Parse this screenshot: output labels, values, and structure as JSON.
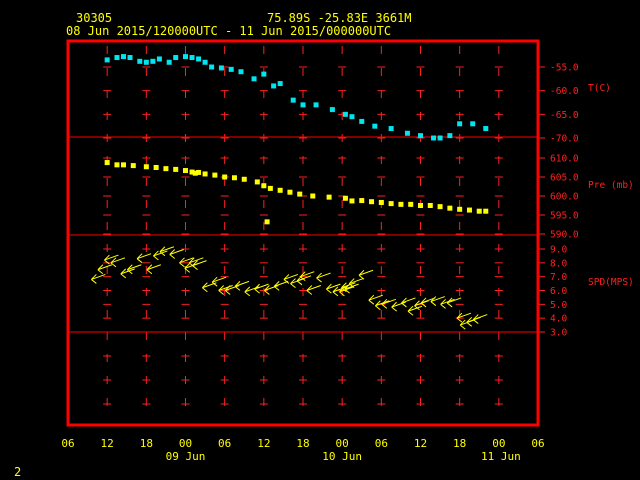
{
  "header": {
    "station": "30305",
    "location": "75.89S   -25.83E   3661M",
    "period": "08 Jun 2015/120000UTC - 11 Jun 2015/000000UTC"
  },
  "footer": {
    "page_number": "2"
  },
  "colors": {
    "frame": "#ff0000",
    "temp": "#00e5ee",
    "pres": "#ffff00",
    "wind": "#ffff00",
    "text": "#ffff00",
    "axis": "#ff2020"
  },
  "chart_data": {
    "type": "scatter",
    "x_ticks": [
      "06",
      "12",
      "18",
      "00",
      "06",
      "12",
      "18",
      "00",
      "06",
      "12",
      "18",
      "00",
      "06"
    ],
    "date_labels": [
      "09 Jun",
      "10 Jun",
      "11 Jun"
    ],
    "panels": [
      {
        "name": "T(C)",
        "yticks": [
          "-55.0",
          "-60.0",
          "-65.0",
          "-70.0"
        ],
        "ylim": [
          -73,
          -50
        ],
        "x": [
          12.0,
          13.5,
          14.5,
          15.5,
          17.0,
          18.0,
          19.0,
          20.0,
          21.5,
          22.5,
          24.0,
          25.0,
          26.0,
          27.0,
          28.0,
          29.5,
          31.0,
          32.5,
          34.5,
          36.0,
          37.5,
          38.5,
          40.5,
          42.0,
          44.0,
          46.5,
          48.5,
          49.5,
          51.0,
          53.0,
          55.5,
          58.0,
          60.0,
          62.0,
          63.0,
          64.5,
          66.0,
          68.0,
          70.0
        ],
        "values": [
          -53.5,
          -53.0,
          -52.8,
          -53.0,
          -53.8,
          -54.0,
          -53.8,
          -53.3,
          -54.0,
          -53.0,
          -52.8,
          -53.0,
          -53.3,
          -54.0,
          -55.0,
          -55.2,
          -55.5,
          -56.0,
          -57.5,
          -56.5,
          -59.0,
          -58.5,
          -62.0,
          -63.0,
          -63.0,
          -64.0,
          -65.0,
          -65.5,
          -66.5,
          -67.5,
          -68.0,
          -69.0,
          -69.5,
          -70.0,
          -70.0,
          -69.5,
          -67.0,
          -67.0,
          -68.0
        ]
      },
      {
        "name": "Pre (mb)",
        "yticks": [
          "610.0",
          "605.0",
          "600.0",
          "595.0",
          "590.0"
        ],
        "ylim": [
          589,
          613
        ],
        "x": [
          12.0,
          13.5,
          14.5,
          16.0,
          18.0,
          19.5,
          21.0,
          22.5,
          24.0,
          25.0,
          25.5,
          26.0,
          27.0,
          28.5,
          30.0,
          31.5,
          33.0,
          35.0,
          36.0,
          37.0,
          38.5,
          40.0,
          41.5,
          43.5,
          46.0,
          48.5,
          49.5,
          51.0,
          52.5,
          54.0,
          55.5,
          57.0,
          58.5,
          60.0,
          61.5,
          63.0,
          64.5,
          66.0,
          67.5,
          69.0,
          70.0,
          36.5
        ],
        "values": [
          608.8,
          608.2,
          608.2,
          608.0,
          607.7,
          607.5,
          607.2,
          607.0,
          606.7,
          606.3,
          606.0,
          606.2,
          605.8,
          605.5,
          605.0,
          604.8,
          604.4,
          603.7,
          602.7,
          602.0,
          601.5,
          601.0,
          600.5,
          600.0,
          599.7,
          599.4,
          598.7,
          598.8,
          598.5,
          598.3,
          598.0,
          597.8,
          597.8,
          597.5,
          597.5,
          597.2,
          596.8,
          596.5,
          596.3,
          596.0,
          596.0,
          593.2
        ]
      },
      {
        "name": "SPD(MPS)",
        "yticks": [
          "9.0",
          "8.0",
          "7.0",
          "6.0",
          "5.0",
          "4.0",
          "3.0"
        ],
        "ylim": [
          2.7,
          9.8
        ],
        "x": [
          10.5,
          11.5,
          12.5,
          13.5,
          15.0,
          16.0,
          17.5,
          19.0,
          20.0,
          21.0,
          22.5,
          24.0,
          24.8,
          25.5,
          26.0,
          27.5,
          29.0,
          30.0,
          31.0,
          32.5,
          34.0,
          35.5,
          37.0,
          38.5,
          40.0,
          41.0,
          42.0,
          42.5,
          43.5,
          45.0,
          46.5,
          47.5,
          48.5,
          48.8,
          49.3,
          50.0,
          51.5,
          53.0,
          54.0,
          55.0,
          56.5,
          58.0,
          59.0,
          60.0,
          61.0,
          62.5,
          64.0,
          65.0,
          66.5,
          67.0,
          68.0,
          69.0
        ],
        "values": [
          6.8,
          7.5,
          8.2,
          8.0,
          7.2,
          7.5,
          8.3,
          7.5,
          8.5,
          8.8,
          8.6,
          8.0,
          7.6,
          8.0,
          7.8,
          6.2,
          6.6,
          6.0,
          6.0,
          6.3,
          5.9,
          6.1,
          6.0,
          6.3,
          6.8,
          6.5,
          6.7,
          7.0,
          6.0,
          6.9,
          6.1,
          5.9,
          5.9,
          6.2,
          6.1,
          6.5,
          7.1,
          5.3,
          4.9,
          5.0,
          4.8,
          5.1,
          4.5,
          4.9,
          5.1,
          5.2,
          5.0,
          5.1,
          4.0,
          3.5,
          3.7,
          3.9
        ],
        "wind_direction": "arrows pointing left (westward)"
      }
    ]
  }
}
